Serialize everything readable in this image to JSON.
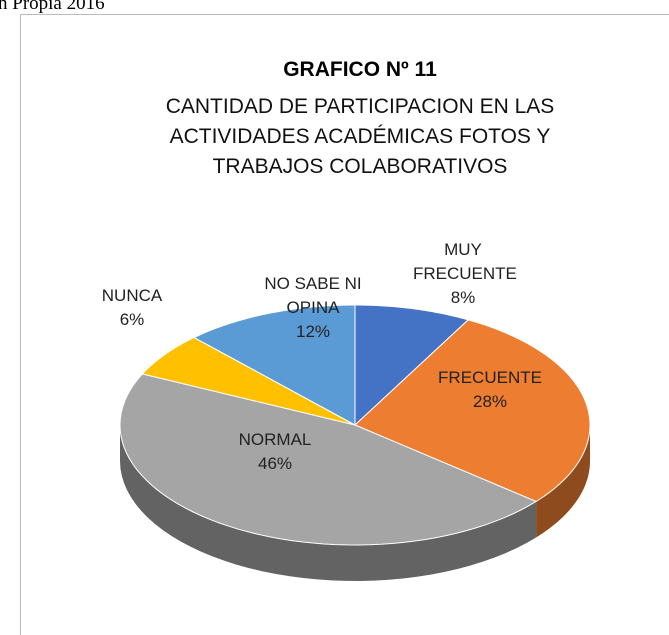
{
  "caption": "n Propia 2016",
  "chart_data": {
    "type": "pie3d",
    "title": "GRAFICO Nº 11",
    "subtitle": "CANTIDAD DE PARTICIPACION EN LAS ACTIVIDADES ACADÉMICAS FOTOS Y TRABAJOS COLABORATIVOS",
    "categories": [
      "MUY FRECUENTE",
      "FRECUENTE",
      "NORMAL",
      "NUNCA",
      "NO SABE NI OPINA"
    ],
    "values": [
      8,
      28,
      46,
      6,
      12
    ],
    "value_labels": [
      "8%",
      "28%",
      "46%",
      "6%",
      "12%"
    ],
    "colors": [
      "#4472c4",
      "#ed7d31",
      "#a5a5a5",
      "#ffc000",
      "#5b9bd5"
    ]
  }
}
